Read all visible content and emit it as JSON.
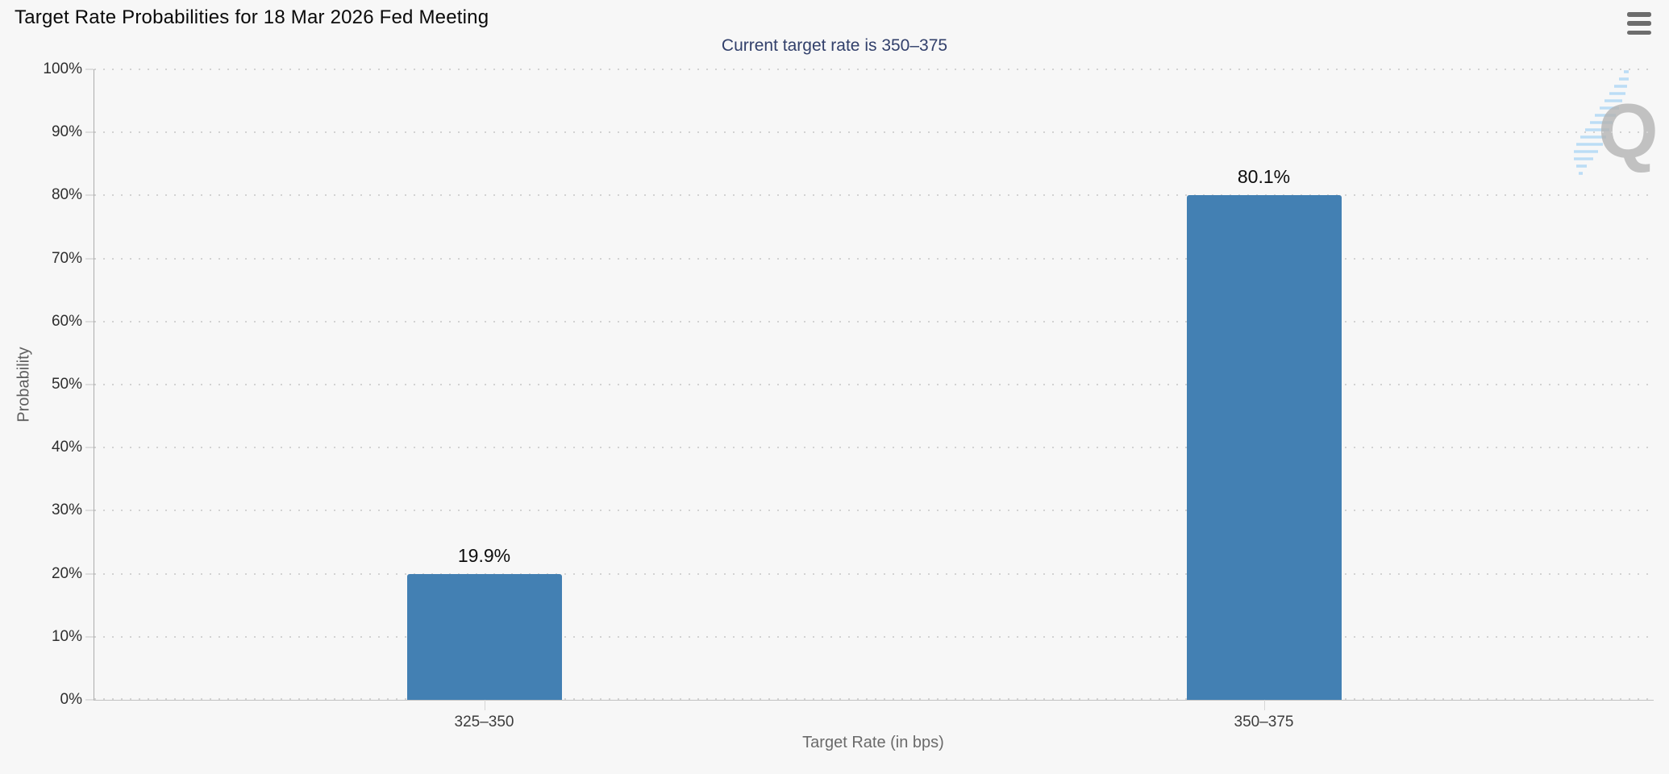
{
  "header": {
    "title": "Target Rate Probabilities for 18 Mar 2026 Fed Meeting",
    "menu_icon": "hamburger-menu-icon"
  },
  "subtitle": "Current target rate is 350–375",
  "chart_data": {
    "type": "bar",
    "title": "Target Rate Probabilities for 18 Mar 2026 Fed Meeting",
    "subtitle": "Current target rate is 350–375",
    "categories": [
      "325–350",
      "350–375"
    ],
    "values": [
      19.9,
      80.1
    ],
    "value_labels": [
      "19.9%",
      "80.1%"
    ],
    "xlabel": "Target Rate (in bps)",
    "ylabel": "Probability",
    "ylim": [
      0,
      100
    ],
    "ytick_step": 10,
    "ytick_suffix": "%",
    "grid": "dotted-horizontal",
    "legend": "none",
    "bar_color": "#4380b3"
  },
  "colors": {
    "background": "#f7f7f7",
    "bar": "#4380b3",
    "subtitle_text": "#32406b",
    "axis_line": "#b5b5b5",
    "grid_dots": "#d2d2d2",
    "watermark_q": "#b4b4b4",
    "watermark_streak": "#a9d5f5"
  },
  "watermark": {
    "name": "quikstrike-q-logo",
    "letter": "Q"
  }
}
